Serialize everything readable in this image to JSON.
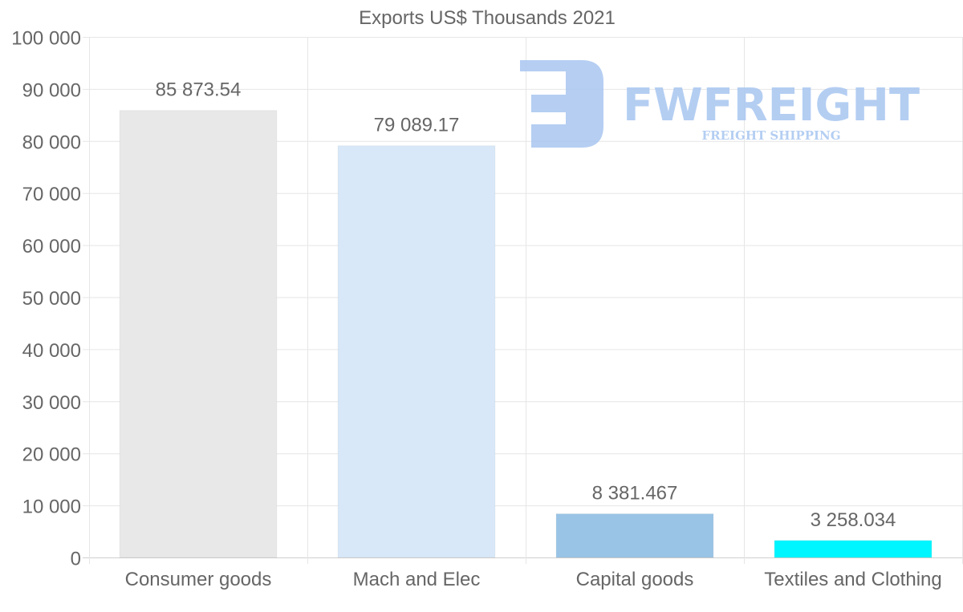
{
  "chart_data": {
    "type": "bar",
    "title": "Exports US$ Thousands 2021",
    "xlabel": "",
    "ylabel": "",
    "categories": [
      "Consumer goods",
      "Mach and Elec",
      "Capital goods",
      "Textiles and Clothing"
    ],
    "values": [
      85873.54,
      79089.17,
      8381.467,
      3258.034
    ],
    "value_labels": [
      "85 873.54",
      "79 089.17",
      "8 381.467",
      "3 258.034"
    ],
    "colors": [
      "#e8e8e8",
      "#d8e8f8",
      "#9ac4e6",
      "#00f6ff"
    ],
    "ylim": [
      0,
      100000
    ],
    "yticks": [
      0,
      10000,
      20000,
      30000,
      40000,
      50000,
      60000,
      70000,
      80000,
      90000,
      100000
    ],
    "ytick_labels": [
      "0",
      "10 000",
      "20 000",
      "30 000",
      "40 000",
      "50 000",
      "60 000",
      "70 000",
      "80 000",
      "90 000",
      "100 000"
    ],
    "grid": true,
    "legend": "none"
  },
  "watermark": {
    "brand": "FWFREIGHT",
    "tagline": "FREIGHT SHIPPING",
    "color": "#a8c6f0"
  }
}
